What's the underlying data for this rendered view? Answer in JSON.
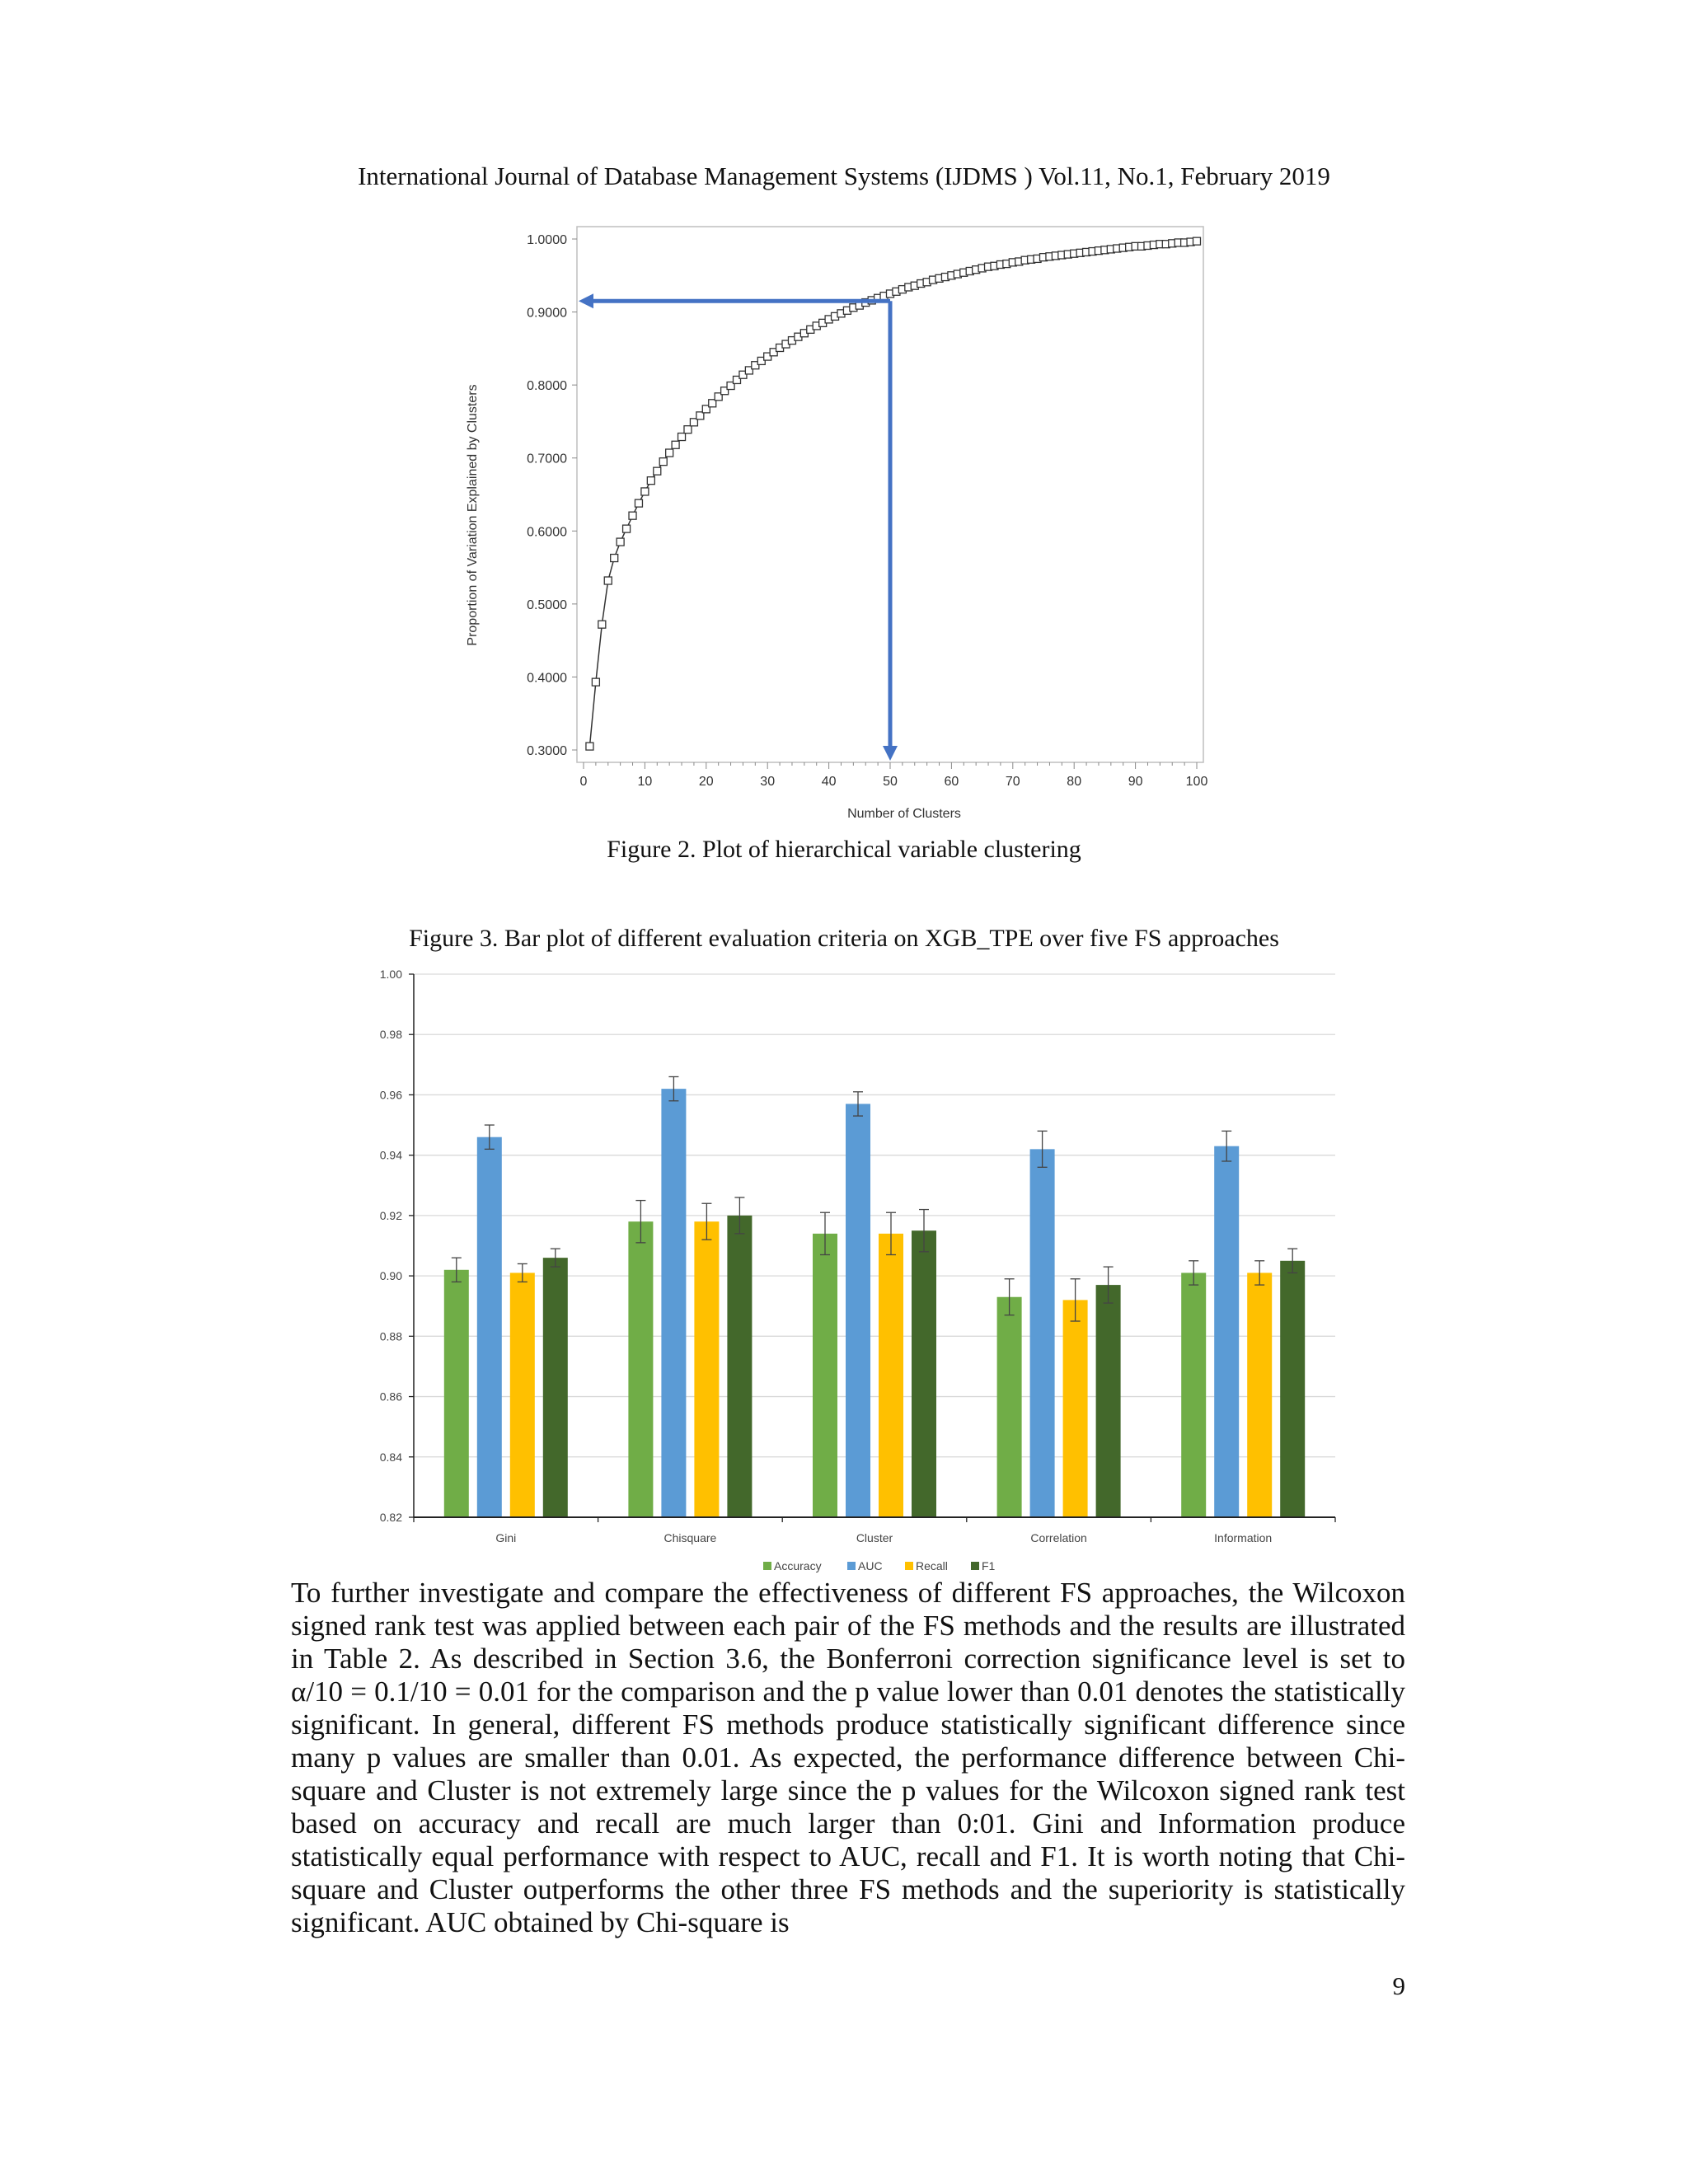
{
  "header": "International Journal of Database Management Systems (IJDMS ) Vol.11, No.1, February 2019",
  "figure2": {
    "caption": "Figure 2.  Plot of hierarchical variable clustering",
    "chart_data": {
      "type": "line",
      "xlabel": "Number of Clusters",
      "ylabel": "Proportion of Variation Explained by Clusters",
      "xlim": [
        0,
        100
      ],
      "ylim": [
        0.3,
        1.0
      ],
      "xticks": [
        "0",
        "10",
        "20",
        "30",
        "40",
        "50",
        "60",
        "70",
        "80",
        "90",
        "100"
      ],
      "yticks": [
        "0.3000",
        "0.4000",
        "0.5000",
        "0.6000",
        "0.7000",
        "0.8000",
        "0.9000",
        "1.0000"
      ],
      "x": [
        1,
        2,
        3,
        4,
        5,
        6,
        7,
        8,
        9,
        10,
        11,
        12,
        13,
        14,
        15,
        16,
        17,
        18,
        19,
        20,
        21,
        22,
        23,
        24,
        25,
        26,
        27,
        28,
        29,
        30,
        31,
        32,
        33,
        34,
        35,
        36,
        37,
        38,
        39,
        40,
        41,
        42,
        43,
        44,
        45,
        46,
        47,
        48,
        49,
        50,
        51,
        52,
        53,
        54,
        55,
        56,
        57,
        58,
        59,
        60,
        61,
        62,
        63,
        64,
        65,
        66,
        67,
        68,
        69,
        70,
        71,
        72,
        73,
        74,
        75,
        76,
        77,
        78,
        79,
        80,
        81,
        82,
        83,
        84,
        85,
        86,
        87,
        88,
        89,
        90,
        91,
        92,
        93,
        94,
        95,
        96,
        97,
        98,
        99,
        100
      ],
      "y": [
        0.305,
        0.393,
        0.472,
        0.532,
        0.563,
        0.585,
        0.603,
        0.621,
        0.638,
        0.654,
        0.669,
        0.682,
        0.695,
        0.707,
        0.718,
        0.729,
        0.739,
        0.749,
        0.758,
        0.767,
        0.775,
        0.784,
        0.792,
        0.799,
        0.807,
        0.814,
        0.82,
        0.827,
        0.833,
        0.839,
        0.845,
        0.851,
        0.856,
        0.861,
        0.866,
        0.871,
        0.876,
        0.881,
        0.885,
        0.89,
        0.894,
        0.898,
        0.902,
        0.906,
        0.909,
        0.913,
        0.916,
        0.919,
        0.922,
        0.925,
        0.928,
        0.931,
        0.934,
        0.936,
        0.939,
        0.941,
        0.944,
        0.946,
        0.948,
        0.95,
        0.952,
        0.954,
        0.956,
        0.958,
        0.96,
        0.962,
        0.963,
        0.965,
        0.966,
        0.968,
        0.969,
        0.971,
        0.972,
        0.973,
        0.975,
        0.976,
        0.977,
        0.978,
        0.979,
        0.98,
        0.981,
        0.982,
        0.983,
        0.984,
        0.985,
        0.986,
        0.987,
        0.988,
        0.989,
        0.99,
        0.99,
        0.991,
        0.992,
        0.993,
        0.993,
        0.994,
        0.995,
        0.995,
        0.996,
        0.997
      ],
      "annotation": {
        "x": 50,
        "y": 0.915,
        "color": "#4472c4"
      },
      "grid": false,
      "marker": "square"
    }
  },
  "figure3": {
    "caption": "Figure 3.  Bar plot of different evaluation criteria on XGB_TPE over five FS approaches",
    "chart_data": {
      "type": "bar",
      "categories": [
        "Gini",
        "Chisquare",
        "Cluster",
        "Correlation",
        "Information"
      ],
      "ylim": [
        0.82,
        1.0
      ],
      "yticks": [
        "0.82",
        "0.84",
        "0.86",
        "0.88",
        "0.90",
        "0.92",
        "0.94",
        "0.96",
        "0.98",
        "1.00"
      ],
      "grid": true,
      "legend_position": "bottom",
      "series": [
        {
          "name": "Accuracy",
          "color": "#70ad47",
          "values": [
            0.902,
            0.918,
            0.914,
            0.893,
            0.901
          ],
          "errors": [
            0.004,
            0.007,
            0.007,
            0.006,
            0.004
          ]
        },
        {
          "name": "AUC",
          "color": "#5b9bd5",
          "values": [
            0.946,
            0.962,
            0.957,
            0.942,
            0.943
          ],
          "errors": [
            0.004,
            0.004,
            0.004,
            0.006,
            0.005
          ]
        },
        {
          "name": "Recall",
          "color": "#ffc000",
          "values": [
            0.901,
            0.918,
            0.914,
            0.892,
            0.901
          ],
          "errors": [
            0.003,
            0.006,
            0.007,
            0.007,
            0.004
          ]
        },
        {
          "name": "F1",
          "color": "#43682b",
          "values": [
            0.906,
            0.92,
            0.915,
            0.897,
            0.905
          ],
          "errors": [
            0.003,
            0.006,
            0.007,
            0.006,
            0.004
          ]
        }
      ]
    }
  },
  "body": {
    "p1": "To further investigate and compare the effectiveness of different FS approaches, the Wilcoxon signed rank test was applied between each pair of the FS methods and the results are illustrated in Table 2. As described in Section 3.6, the Bonferroni correction significance level is set to α/10 = 0.1/10 = 0.01 for the comparison and the p value lower than 0.01 denotes the statistically significant. In general, different FS methods produce statistically significant difference since many p values are smaller than 0.01. As expected, the performance difference between Chi-square and Cluster is not extremely large since the p values for the Wilcoxon signed rank test based on accuracy and recall are much larger than 0:01. Gini and Information produce statistically equal performance with respect to AUC, recall and F1. It is worth noting that Chi-square and Cluster outperforms the other three FS methods and the superiority is statistically significant. AUC obtained by Chi-square is"
  },
  "page_number": "9"
}
